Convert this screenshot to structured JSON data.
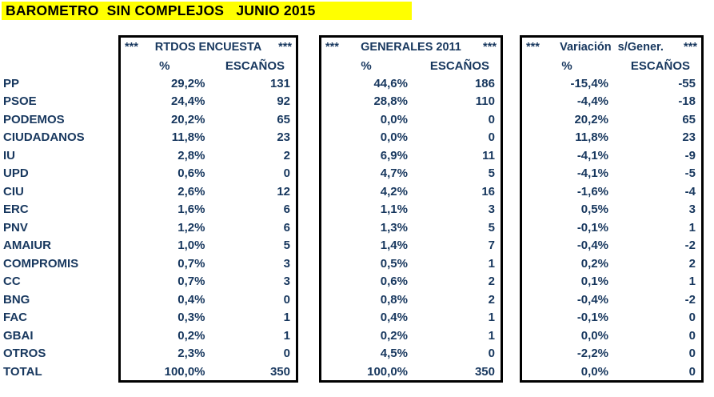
{
  "title": "BAROMETRO  SIN COMPLEJOS   JUNIO 2015",
  "colors": {
    "title_bg": "#FFFF00",
    "title_text": "#000000",
    "data_text": "#17375E",
    "border": "#000000",
    "background": "#FFFFFF"
  },
  "tables": [
    {
      "id": "encuesta",
      "stars_left": "***",
      "title": "RTDOS ENCUESTA",
      "stars_right": "***",
      "col_pct": "%",
      "col_seats": "ESCAÑOS"
    },
    {
      "id": "generales",
      "stars_left": "***",
      "title": "GENERALES 2011",
      "stars_right": "***",
      "col_pct": "%",
      "col_seats": "ESCAÑOS"
    },
    {
      "id": "variacion",
      "stars_left": "***",
      "title": "Variación  s/Gener.",
      "stars_right": "***",
      "col_pct": "%",
      "col_seats": "ESCAÑOS"
    }
  ],
  "rows": [
    {
      "party": "PP",
      "encuesta": {
        "pct": "29,2%",
        "seats": "131"
      },
      "generales": {
        "pct": "44,6%",
        "seats": "186"
      },
      "variacion": {
        "pct": "-15,4%",
        "seats": "-55"
      }
    },
    {
      "party": "PSOE",
      "encuesta": {
        "pct": "24,4%",
        "seats": "92"
      },
      "generales": {
        "pct": "28,8%",
        "seats": "110"
      },
      "variacion": {
        "pct": "-4,4%",
        "seats": "-18"
      }
    },
    {
      "party": "PODEMOS",
      "encuesta": {
        "pct": "20,2%",
        "seats": "65"
      },
      "generales": {
        "pct": "0,0%",
        "seats": "0"
      },
      "variacion": {
        "pct": "20,2%",
        "seats": "65"
      }
    },
    {
      "party": "CIUDADANOS",
      "encuesta": {
        "pct": "11,8%",
        "seats": "23"
      },
      "generales": {
        "pct": "0,0%",
        "seats": "0"
      },
      "variacion": {
        "pct": "11,8%",
        "seats": "23"
      }
    },
    {
      "party": "IU",
      "encuesta": {
        "pct": "2,8%",
        "seats": "2"
      },
      "generales": {
        "pct": "6,9%",
        "seats": "11"
      },
      "variacion": {
        "pct": "-4,1%",
        "seats": "-9"
      }
    },
    {
      "party": "UPD",
      "encuesta": {
        "pct": "0,6%",
        "seats": "0"
      },
      "generales": {
        "pct": "4,7%",
        "seats": "5"
      },
      "variacion": {
        "pct": "-4,1%",
        "seats": "-5"
      }
    },
    {
      "party": "CIU",
      "encuesta": {
        "pct": "2,6%",
        "seats": "12"
      },
      "generales": {
        "pct": "4,2%",
        "seats": "16"
      },
      "variacion": {
        "pct": "-1,6%",
        "seats": "-4"
      }
    },
    {
      "party": "ERC",
      "encuesta": {
        "pct": "1,6%",
        "seats": "6"
      },
      "generales": {
        "pct": "1,1%",
        "seats": "3"
      },
      "variacion": {
        "pct": "0,5%",
        "seats": "3"
      }
    },
    {
      "party": "PNV",
      "encuesta": {
        "pct": "1,2%",
        "seats": "6"
      },
      "generales": {
        "pct": "1,3%",
        "seats": "5"
      },
      "variacion": {
        "pct": "-0,1%",
        "seats": "1"
      }
    },
    {
      "party": "AMAIUR",
      "encuesta": {
        "pct": "1,0%",
        "seats": "5"
      },
      "generales": {
        "pct": "1,4%",
        "seats": "7"
      },
      "variacion": {
        "pct": "-0,4%",
        "seats": "-2"
      }
    },
    {
      "party": "COMPROMIS",
      "encuesta": {
        "pct": "0,7%",
        "seats": "3"
      },
      "generales": {
        "pct": "0,5%",
        "seats": "1"
      },
      "variacion": {
        "pct": "0,2%",
        "seats": "2"
      }
    },
    {
      "party": "CC",
      "encuesta": {
        "pct": "0,7%",
        "seats": "3"
      },
      "generales": {
        "pct": "0,6%",
        "seats": "2"
      },
      "variacion": {
        "pct": "0,1%",
        "seats": "1"
      }
    },
    {
      "party": "BNG",
      "encuesta": {
        "pct": "0,4%",
        "seats": "0"
      },
      "generales": {
        "pct": "0,8%",
        "seats": "2"
      },
      "variacion": {
        "pct": "-0,4%",
        "seats": "-2"
      }
    },
    {
      "party": "FAC",
      "encuesta": {
        "pct": "0,3%",
        "seats": "1"
      },
      "generales": {
        "pct": "0,4%",
        "seats": "1"
      },
      "variacion": {
        "pct": "-0,1%",
        "seats": "0"
      }
    },
    {
      "party": "GBAI",
      "encuesta": {
        "pct": "0,2%",
        "seats": "1"
      },
      "generales": {
        "pct": "0,2%",
        "seats": "1"
      },
      "variacion": {
        "pct": "0,0%",
        "seats": "0"
      }
    },
    {
      "party": "OTROS",
      "encuesta": {
        "pct": "2,3%",
        "seats": "0"
      },
      "generales": {
        "pct": "4,5%",
        "seats": "0"
      },
      "variacion": {
        "pct": "-2,2%",
        "seats": "0"
      }
    },
    {
      "party": "TOTAL",
      "encuesta": {
        "pct": "100,0%",
        "seats": "350"
      },
      "generales": {
        "pct": "100,0%",
        "seats": "350"
      },
      "variacion": {
        "pct": "0,0%",
        "seats": "0"
      }
    }
  ]
}
